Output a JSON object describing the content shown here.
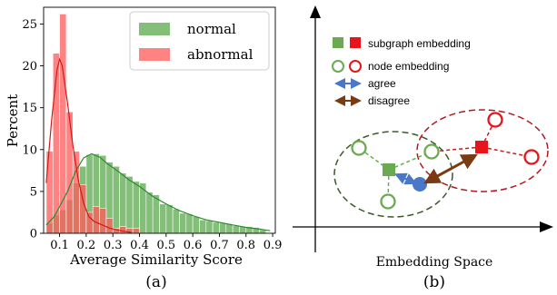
{
  "chart_data": [
    {
      "type": "bar",
      "panel_label": "(a)",
      "xlabel": "Average Similarity Score",
      "ylabel": "Percent",
      "xlim": [
        0.04,
        0.91
      ],
      "ylim": [
        0,
        27
      ],
      "xticks": [
        0.1,
        0.2,
        0.3,
        0.4,
        0.5,
        0.6,
        0.7,
        0.8,
        0.9
      ],
      "yticks": [
        0,
        5,
        10,
        15,
        20,
        25
      ],
      "grid": false,
      "legend_position": "top-right",
      "bin_edges": [
        0.05,
        0.075,
        0.1,
        0.125,
        0.15,
        0.175,
        0.2,
        0.225,
        0.25,
        0.275,
        0.3,
        0.325,
        0.35,
        0.375,
        0.4,
        0.425,
        0.45,
        0.475,
        0.5,
        0.525,
        0.55,
        0.575,
        0.6,
        0.625,
        0.65,
        0.675,
        0.7,
        0.725,
        0.75,
        0.775,
        0.8,
        0.825,
        0.85,
        0.875
      ],
      "series": [
        {
          "name": "normal",
          "color": "#5aaa4b",
          "values": [
            1.2,
            2.2,
            2.8,
            4.0,
            6.0,
            8.0,
            9.4,
            9.5,
            9.3,
            8.5,
            8.0,
            7.2,
            6.8,
            6.2,
            6.0,
            4.9,
            4.6,
            3.5,
            3.4,
            2.9,
            2.4,
            2.3,
            2.0,
            1.6,
            1.5,
            1.3,
            1.2,
            1.1,
            0.9,
            0.8,
            0.8,
            0.7,
            0.4
          ],
          "kde": [
            [
              0.05,
              1.0
            ],
            [
              0.08,
              2.0
            ],
            [
              0.1,
              3.2
            ],
            [
              0.13,
              5.0
            ],
            [
              0.16,
              7.4
            ],
            [
              0.19,
              9.0
            ],
            [
              0.22,
              9.5
            ],
            [
              0.25,
              9.1
            ],
            [
              0.28,
              8.3
            ],
            [
              0.32,
              7.4
            ],
            [
              0.36,
              6.4
            ],
            [
              0.4,
              5.6
            ],
            [
              0.45,
              4.4
            ],
            [
              0.5,
              3.5
            ],
            [
              0.55,
              2.7
            ],
            [
              0.6,
              2.1
            ],
            [
              0.65,
              1.6
            ],
            [
              0.7,
              1.3
            ],
            [
              0.75,
              1.0
            ],
            [
              0.8,
              0.7
            ],
            [
              0.85,
              0.5
            ],
            [
              0.89,
              0.3
            ]
          ]
        },
        {
          "name": "abnormal",
          "color": "#ff5a5a",
          "values": [
            9.8,
            21.5,
            26.2,
            14.5,
            9.8,
            5.8,
            2.5,
            3.2,
            3.0,
            1.8,
            0.6,
            0.8,
            0.6,
            0.6,
            0.0,
            0.0,
            0.0,
            0.0,
            0.0,
            0.0,
            0.0,
            0.0,
            0.0,
            0.0,
            0.0,
            0.0,
            0.0,
            0.0,
            0.0,
            0.0,
            0.0,
            0.0,
            0.0
          ],
          "kde": [
            [
              0.05,
              6.0
            ],
            [
              0.07,
              13.5
            ],
            [
              0.09,
              19.5
            ],
            [
              0.1,
              20.8
            ],
            [
              0.11,
              20.0
            ],
            [
              0.13,
              15.5
            ],
            [
              0.15,
              10.5
            ],
            [
              0.17,
              6.4
            ],
            [
              0.19,
              3.6
            ],
            [
              0.21,
              2.0
            ],
            [
              0.23,
              1.4
            ],
            [
              0.26,
              1.0
            ],
            [
              0.29,
              0.6
            ],
            [
              0.33,
              0.3
            ],
            [
              0.37,
              0.1
            ]
          ]
        }
      ]
    }
  ],
  "diagram": {
    "panel_label": "(b)",
    "xlabel": "Embedding Space",
    "legend": {
      "subgraph": "subgraph embedding",
      "node": "node embedding",
      "agree": "agree",
      "disagree": "disagree"
    },
    "colors": {
      "normal": "#6aaa50",
      "abnormal": "#e8141c",
      "agree": "#4a78c8",
      "disagree": "#7a3a14",
      "node_blue": "#4a78c8",
      "normal_dash": "#3a5a2a",
      "abnormal_dash": "#b01820"
    }
  }
}
